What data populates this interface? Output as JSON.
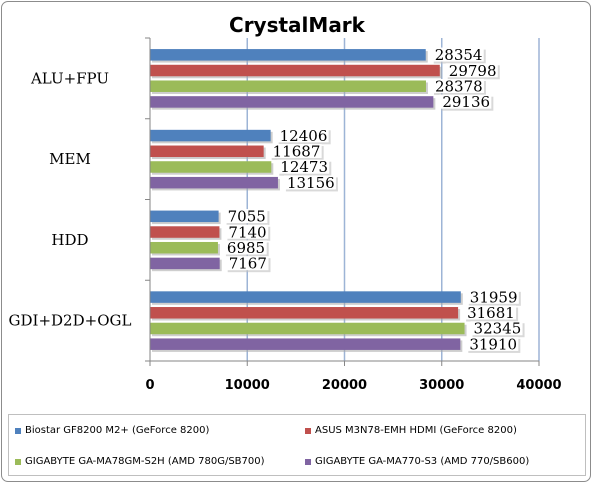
{
  "chart_data": {
    "type": "bar",
    "orientation": "horizontal",
    "title": "CrystalMark",
    "categories": [
      "ALU+FPU",
      "MEM",
      "HDD",
      "GDI+D2D+OGL"
    ],
    "series": [
      {
        "name": "Biostar GF8200 M2+ (GeForce 8200)",
        "color": "#4f81bd",
        "values": [
          28354,
          12406,
          7055,
          31959
        ]
      },
      {
        "name": "ASUS M3N78-EMH HDMI (GeForce 8200)",
        "color": "#c0504d",
        "values": [
          29798,
          11687,
          7140,
          31681
        ]
      },
      {
        "name": "GIGABYTE GA-MA78GM-S2H (AMD 780G/SB700)",
        "color": "#9bbb59",
        "values": [
          28378,
          12473,
          6985,
          32345
        ]
      },
      {
        "name": "GIGABYTE GA-MA770-S3 (AMD 770/SB600)",
        "color": "#8064a2",
        "values": [
          29136,
          13156,
          7167,
          31910
        ]
      }
    ],
    "xlim": [
      0,
      40000
    ],
    "xticks": [
      "0",
      "10000",
      "20000",
      "30000",
      "40000"
    ],
    "grid": true,
    "legend_position": "bottom"
  }
}
